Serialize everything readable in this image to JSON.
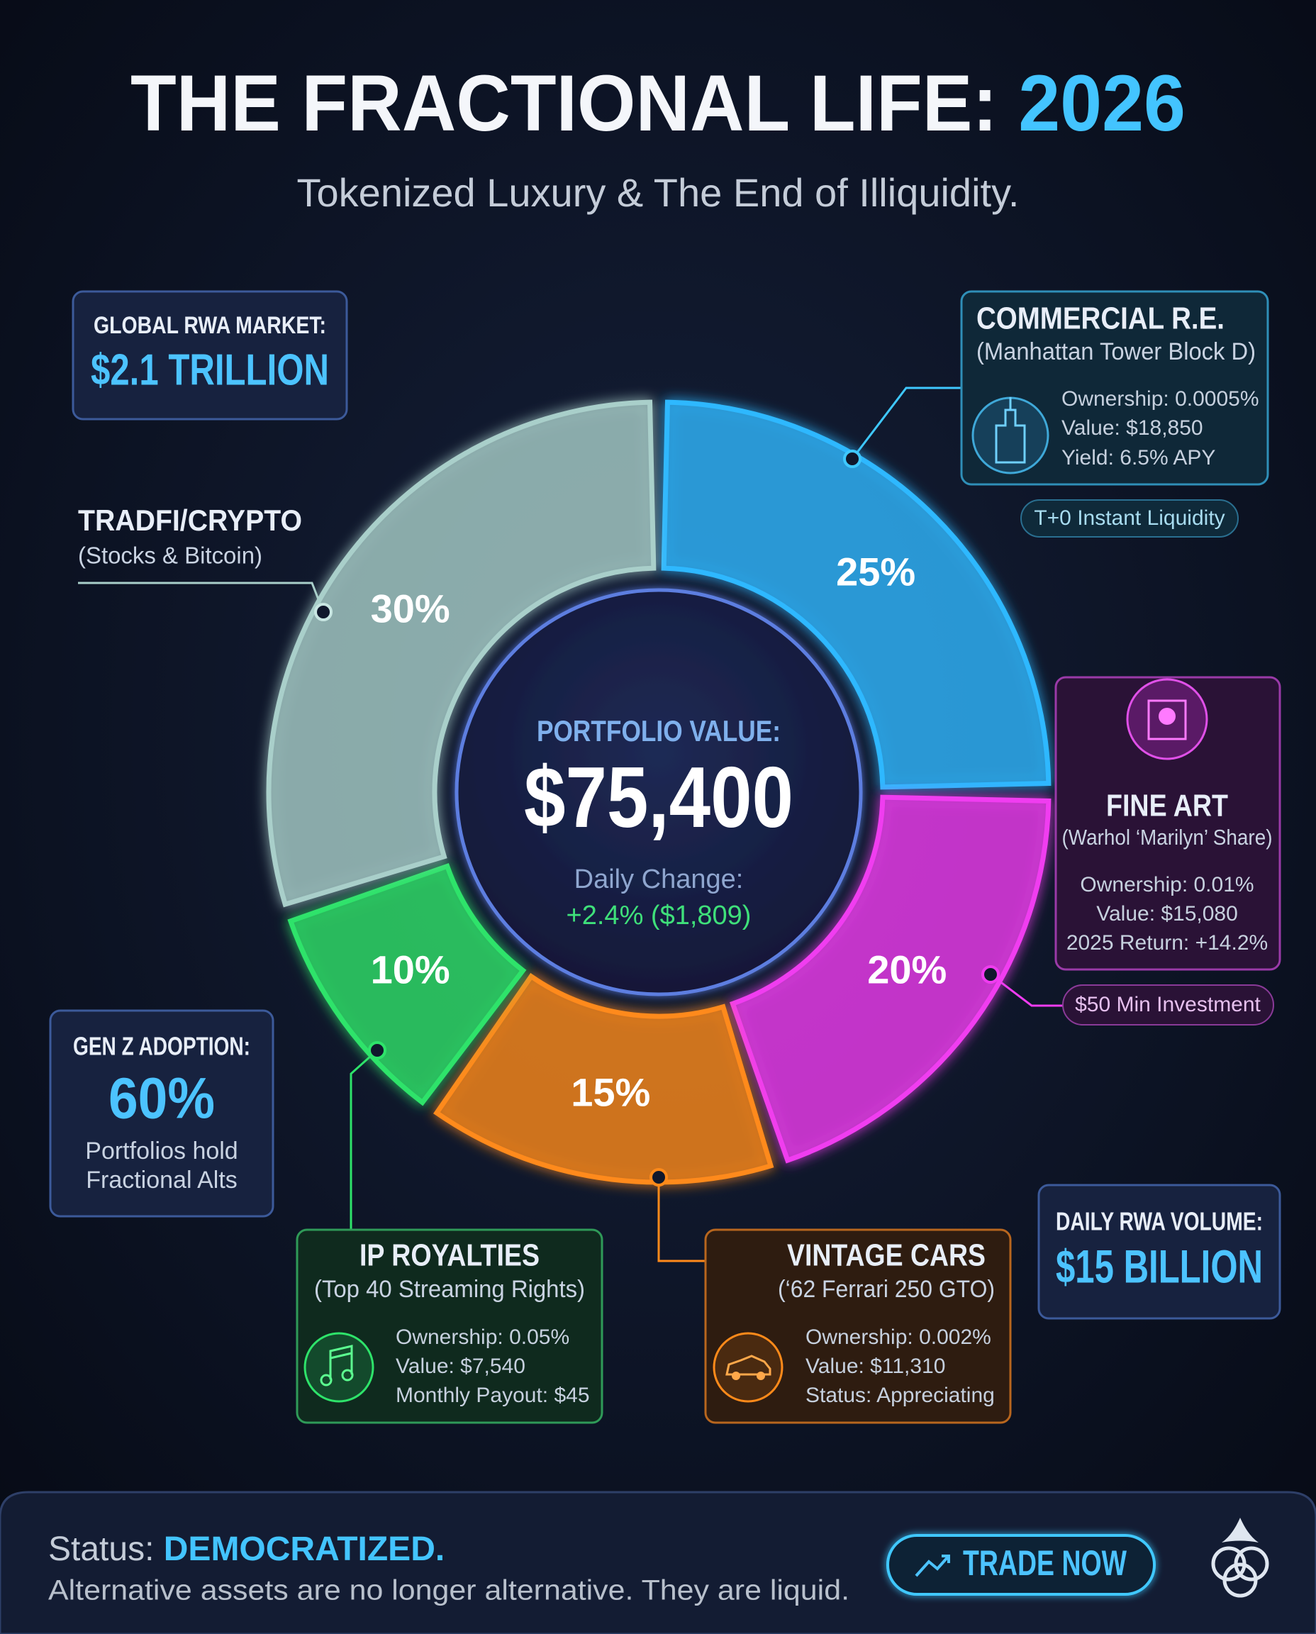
{
  "header": {
    "title": "THE FRACTIONAL LIFE:",
    "title_highlight": "2026",
    "subtitle": "Tokenized Luxury & The End of Illiquidity."
  },
  "chart_data": {
    "type": "donut",
    "categories": [
      "COMMERCIAL R.E.",
      "FINE ART",
      "VINTAGE CARS",
      "IP ROYALTIES",
      "TRADFI/CRYPTO"
    ],
    "values": [
      25,
      20,
      15,
      10,
      30
    ],
    "value_labels": [
      "25%",
      "20%",
      "15%",
      "10%",
      "30%"
    ],
    "colors": [
      "#2fb8ff",
      "#f03cf0",
      "#ff8a1a",
      "#2ee36a",
      "#a9cfca"
    ],
    "center": {
      "label": "PORTFOLIO VALUE:",
      "value": "$75,400",
      "change_label": "Daily Change:",
      "change": "+2.4% ($1,809)"
    }
  },
  "callouts": [
    {
      "subtitle": "(Manhattan Tower Block D)",
      "details": [
        "Ownership: 0.0005%",
        "Value: $18,850",
        "Yield: 6.5% APY"
      ],
      "badge": "T+0 Instant Liquidity"
    },
    {
      "subtitle": "(Warhol ‘Marilyn’ Share)",
      "details": [
        "Ownership: 0.01%",
        "Value: $15,080",
        "2025 Return: +14.2%"
      ],
      "badge": "$50 Min Investment"
    },
    {
      "subtitle": "(‘62 Ferrari 250 GTO)",
      "details": [
        "Ownership: 0.002%",
        "Value: $11,310",
        "Status: Appreciating"
      ]
    },
    {
      "subtitle": "(Top 40 Streaming Rights)",
      "details": [
        "Ownership: 0.05%",
        "Value: $7,540",
        "Monthly Payout: $45"
      ]
    },
    {
      "subtitle": "(Stocks & Bitcoin)"
    }
  ],
  "stats": [
    {
      "label": "GLOBAL RWA MARKET:",
      "value": "$2.1 TRILLION"
    },
    {
      "label": "GEN Z ADOPTION:",
      "value": "60%",
      "note": [
        "Portfolios hold",
        "Fractional Alts"
      ]
    },
    {
      "label": "DAILY RWA VOLUME:",
      "value": "$15 BILLION"
    }
  ],
  "footer": {
    "status_label": "Status:",
    "status_value": "DEMOCRATIZED.",
    "tagline": "Alternative assets are no longer alternative. They are liquid.",
    "button": "TRADE NOW"
  }
}
